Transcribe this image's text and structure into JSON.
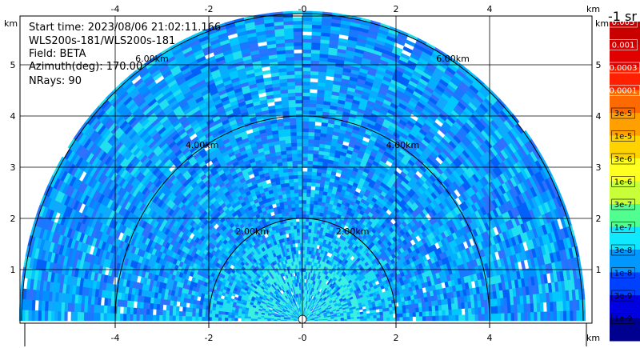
{
  "info": {
    "start_time": "Start time: 2023/08/06 21:02:11.166",
    "instrument": "WLS200s-181/WLS200s-181",
    "field": "Field: BETA",
    "azimuth": "Azimuth(deg): 170.00",
    "nrays": "NRays: 90"
  },
  "axes": {
    "unit": "km",
    "x_ticks": [
      -4,
      -2,
      0,
      2,
      4
    ],
    "x_tick_labels": [
      "-4",
      "-2",
      "-0",
      "2",
      "4"
    ],
    "y_ticks": [
      1,
      2,
      3,
      4,
      5
    ],
    "y_tick_labels": [
      "1",
      "2",
      "3",
      "4",
      "5"
    ],
    "x_range": [
      -6,
      6
    ],
    "y_range": [
      0,
      6
    ]
  },
  "range_rings": [
    {
      "range_km": 2,
      "label": "2.00km"
    },
    {
      "range_km": 4,
      "label": "4.00km"
    },
    {
      "range_km": 6,
      "label": "6.00km"
    }
  ],
  "colorbar": {
    "units_label": "-1 sr",
    "labels": [
      "0.005",
      "0.001",
      "0.0003",
      "0.0001",
      "3e-5",
      "1e-5",
      "3e-6",
      "1e-6",
      "3e-7",
      "1e-7",
      "3e-8",
      "1e-8",
      "3e-9",
      "1e-9"
    ],
    "colors": [
      "#c80000",
      "#e00000",
      "#ff2000",
      "#ff6a00",
      "#ffa000",
      "#ffd200",
      "#ffff20",
      "#c8ff38",
      "#50ff90",
      "#10e8ff",
      "#0098ff",
      "#0040ff",
      "#0000e0",
      "#000090"
    ],
    "label_colors": [
      "#ffffff",
      "#ffffff",
      "#ffffff",
      "#ffffff",
      "#000000",
      "#000000",
      "#000000",
      "#000000",
      "#000000",
      "#000000",
      "#000000",
      "#000000",
      "#000000",
      "#000000"
    ]
  },
  "field_palette": [
    "#00c8ff",
    "#10a8ff",
    "#0090ff",
    "#1878ff",
    "#3070ff",
    "#20e0f0",
    "#00b0ff",
    "#0060f8"
  ]
}
